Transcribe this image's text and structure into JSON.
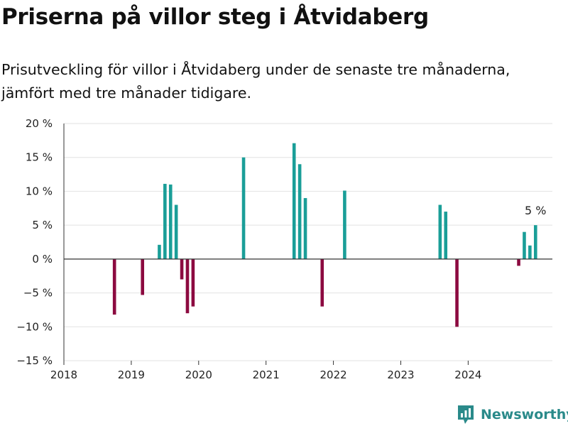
{
  "header": {
    "title": "Priserna på villor steg i Åtvidaberg",
    "subtitle": "Prisutveckling för villor i Åtvidaberg under de senaste tre månaderna, jämfört med tre månader tidigare."
  },
  "brand": {
    "name": "Newsworthy",
    "icon": "newsworthy-logo-icon"
  },
  "colors": {
    "positive": "#1a9e98",
    "negative": "#8c0a40",
    "grid": "#e2e2e2",
    "axis": "#333333",
    "brand": "#2a8a8a"
  },
  "chart_data": {
    "type": "bar",
    "title": "Priserna på villor steg i Åtvidaberg",
    "subtitle": "Prisutveckling för villor i Åtvidaberg under de senaste tre månaderna, jämfört med tre månader tidigare.",
    "xlabel": "",
    "ylabel": "",
    "x_range": [
      "2018-01",
      "2025-04"
    ],
    "ylim": [
      -15,
      20
    ],
    "y_ticks": [
      20,
      15,
      10,
      5,
      0,
      -5,
      -10,
      -15
    ],
    "y_tick_labels": [
      "20 %",
      "15 %",
      "10 %",
      "5 %",
      "0 %",
      "−5 %",
      "−10 %",
      "−15 %"
    ],
    "x_tick_labels": [
      "2018",
      "2019",
      "2020",
      "2021",
      "2022",
      "2023",
      "2024"
    ],
    "grid": "horizontal",
    "series": [
      {
        "values": [
          {
            "x": "2018-10",
            "y": -8.2
          },
          {
            "x": "2019-03",
            "y": -5.3
          },
          {
            "x": "2019-06",
            "y": 2.1
          },
          {
            "x": "2019-07",
            "y": 11.1
          },
          {
            "x": "2019-08",
            "y": 11.0
          },
          {
            "x": "2019-09",
            "y": 8.0
          },
          {
            "x": "2019-10",
            "y": -3.0
          },
          {
            "x": "2019-11",
            "y": -8.0
          },
          {
            "x": "2019-12",
            "y": -7.0
          },
          {
            "x": "2020-09",
            "y": 15.0
          },
          {
            "x": "2021-06",
            "y": 17.1
          },
          {
            "x": "2021-07",
            "y": 14.0
          },
          {
            "x": "2021-08",
            "y": 9.0
          },
          {
            "x": "2021-11",
            "y": -7.0
          },
          {
            "x": "2022-03",
            "y": 10.1
          },
          {
            "x": "2023-08",
            "y": 8.0
          },
          {
            "x": "2023-09",
            "y": 7.0
          },
          {
            "x": "2023-11",
            "y": -10.0
          },
          {
            "x": "2024-10",
            "y": -1.0
          },
          {
            "x": "2024-11",
            "y": 4.0
          },
          {
            "x": "2024-12",
            "y": 2.0
          },
          {
            "x": "2025-01",
            "y": 5.0
          }
        ]
      }
    ],
    "annotations": [
      {
        "x": "2025-01",
        "text": "5 %"
      }
    ]
  }
}
